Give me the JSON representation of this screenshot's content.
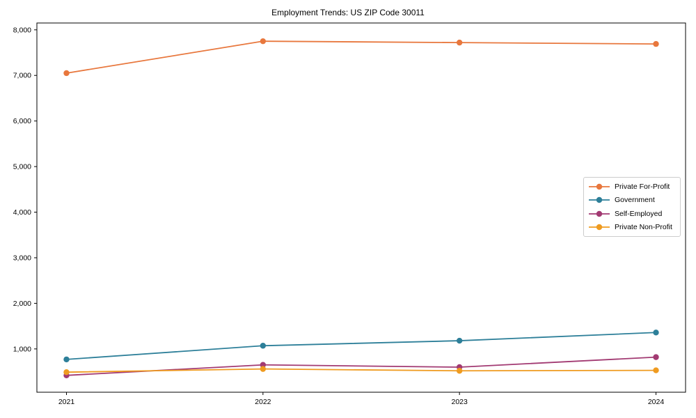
{
  "figure": {
    "background": "#ffffff",
    "axis_color": "#000000"
  },
  "chart_data": {
    "type": "line",
    "title": "Employment Trends: US ZIP Code 30011",
    "categories": [
      "2021",
      "2022",
      "2023",
      "2024"
    ],
    "series": [
      {
        "name": "Private For-Profit",
        "color": "#e8773d",
        "values": [
          7050,
          7750,
          7720,
          7690
        ]
      },
      {
        "name": "Government",
        "color": "#2d7f99",
        "values": [
          770,
          1070,
          1180,
          1360
        ]
      },
      {
        "name": "Self-Employed",
        "color": "#a23a72",
        "values": [
          420,
          650,
          600,
          820
        ]
      },
      {
        "name": "Private Non-Profit",
        "color": "#ef9b20",
        "values": [
          490,
          560,
          520,
          530
        ]
      }
    ],
    "xlabel": "",
    "ylabel": "",
    "ylim": [
      50,
      8150
    ],
    "yticks": [
      1000,
      2000,
      3000,
      4000,
      5000,
      6000,
      7000,
      8000
    ],
    "ytick_labels": [
      "1,000",
      "2,000",
      "3,000",
      "4,000",
      "5,000",
      "6,000",
      "7,000",
      "8,000"
    ],
    "grid": false,
    "legend_position": "center-right",
    "marker": "circle",
    "line_width": 1.8,
    "marker_radius": 4.2
  }
}
